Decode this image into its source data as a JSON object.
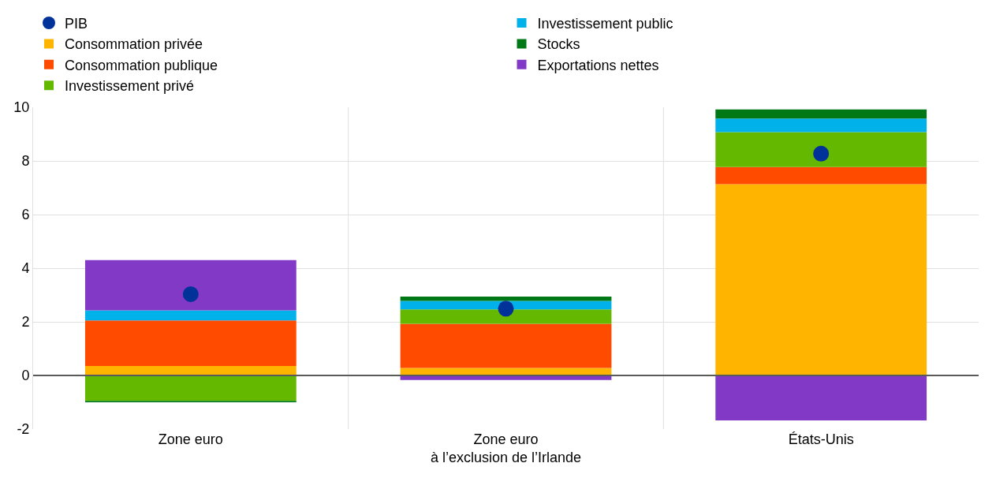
{
  "chart_data": {
    "type": "bar",
    "stacked": true,
    "categories": [
      "Zone euro",
      "Zone euro\nà l’exclusion de l’Irlande",
      "États-Unis"
    ],
    "series": [
      {
        "name": "Consommation privée",
        "color": "#ffb400",
        "values": [
          0.35,
          0.28,
          7.13
        ]
      },
      {
        "name": "Consommation publique",
        "color": "#ff4b00",
        "values": [
          1.7,
          1.65,
          0.64
        ]
      },
      {
        "name": "Investissement privé",
        "color": "#65b800",
        "values": [
          -0.95,
          0.53,
          1.3
        ]
      },
      {
        "name": "Investissement public",
        "color": "#00b1ea",
        "values": [
          0.38,
          0.32,
          0.51
        ]
      },
      {
        "name": "Stocks",
        "color": "#007816",
        "values": [
          -0.05,
          0.16,
          0.34
        ]
      },
      {
        "name": "Exportations nettes",
        "color": "#8139c6",
        "values": [
          1.87,
          -0.17,
          -1.68
        ]
      },
      {
        "name": "PIB",
        "type": "scatter",
        "color": "#003299",
        "marker": "circle",
        "x": [
          "Zone euro",
          "Zone euro\nà l’exclusion de l’Irlande",
          "États-Unis"
        ],
        "values": [
          3.03,
          2.49,
          8.27
        ]
      }
    ],
    "ylim": [
      -2,
      10
    ],
    "yticks": [
      -2,
      0,
      2,
      4,
      6,
      8,
      10
    ],
    "grid": true,
    "legend": "top left",
    "ref_lines": [
      {
        "axis": "y",
        "value": 0,
        "color": "#5a5a5a"
      }
    ]
  }
}
